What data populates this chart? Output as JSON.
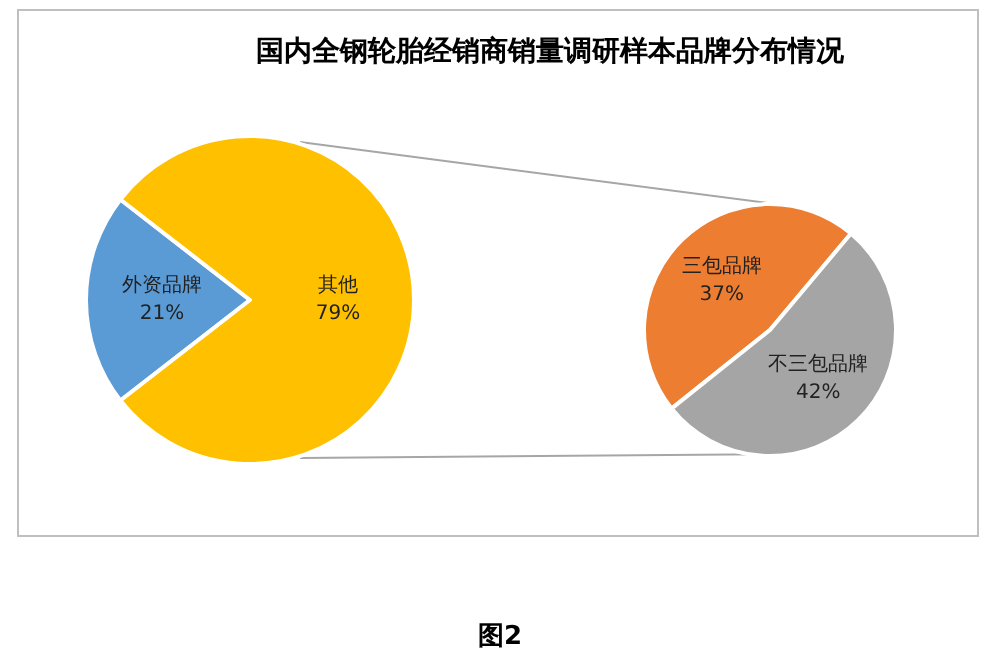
{
  "chart_data": [
    {
      "type": "pie",
      "title": "国内全钢轮胎经销商销量调研样本品牌分布情况",
      "categories": [
        "外资品牌",
        "其他"
      ],
      "values": [
        21,
        79
      ],
      "value_labels": [
        "21%",
        "79%"
      ],
      "colors": [
        "#5b9bd5",
        "#ffc000"
      ],
      "legend": false,
      "annotations": [
        "图2"
      ]
    },
    {
      "type": "pie",
      "categories": [
        "三包品牌",
        "不三包品牌"
      ],
      "values": [
        37,
        42
      ],
      "value_labels": [
        "37%",
        "42%"
      ],
      "colors": [
        "#ed7d31",
        "#a5a5a5"
      ],
      "legend": false
    }
  ]
}
